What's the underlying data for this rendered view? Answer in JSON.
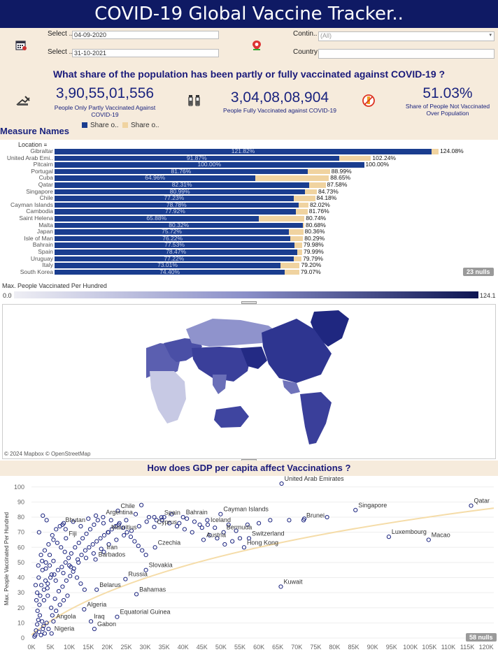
{
  "header": {
    "title": "COVID-19 Global Vaccine Tracker.."
  },
  "filters": {
    "start_label": "Select ..",
    "start_value": "04-09-2020",
    "end_label": "Select ..",
    "end_value": "31-10-2021",
    "continent_label": "Contin..",
    "continent_value": "(All)",
    "country_label": "Country",
    "country_value": ""
  },
  "kpis": {
    "question": "What share of the population has been partly or fully vaccinated against COVID-19 ?",
    "partly_value": "3,90,55,01,556",
    "partly_label_1": "People Only Partly Vaccinated Against",
    "partly_label_2": "COVID-19",
    "fully_value": "3,04,08,08,904",
    "fully_label": "People Fully Vaccinated against COVID-19",
    "not_value": "51.03%",
    "not_label_1": "Share of People Not Vaccinated",
    "not_label_2": "Over Population"
  },
  "bar_chart": {
    "measure_title": "Measure Names",
    "legend_1": "Share o..",
    "legend_2": "Share o..",
    "column_header": "Location",
    "nulls": "23 nulls",
    "colors": {
      "fully": "#1a3d8f",
      "partly": "#f0d3a0"
    },
    "max_scale": 127
  },
  "chart_data": [
    {
      "type": "bar",
      "categories": [
        "Gibraltar",
        "United Arab Emi..",
        "Pitcairn",
        "Portugal",
        "Cuba",
        "Qatar",
        "Singapore",
        "Chile",
        "Cayman Islands",
        "Cambodia",
        "Saint Helena",
        "Malta",
        "Japan",
        "Isle of Man",
        "Bahrain",
        "Spain",
        "Uruguay",
        "Italy",
        "South Korea"
      ],
      "series": [
        {
          "name": "Share o..",
          "values": [
            121.82,
            91.87,
            100.0,
            81.76,
            64.96,
            82.31,
            80.99,
            77.23,
            78.78,
            77.92,
            65.88,
            80.32,
            75.72,
            76.22,
            77.53,
            78.47,
            77.22,
            73.01,
            74.4
          ]
        },
        {
          "name": "Share o..",
          "values": [
            2.26,
            10.37,
            0,
            7.23,
            23.69,
            5.27,
            3.74,
            6.95,
            3.24,
            3.84,
            14.86,
            0.36,
            4.64,
            4.07,
            2.45,
            1.52,
            2.57,
            6.19,
            4.67
          ]
        }
      ],
      "value_labels": [
        "121.82%",
        "91.87%",
        "100.00%",
        "81.76%",
        "64.96%",
        "82.31%",
        "80.99%",
        "77.23%",
        "78.78%",
        "77.92%",
        "65.88%",
        "80.32%",
        "75.72%",
        "76.22%",
        "77.53%",
        "78.47%",
        "77.22%",
        "73.01%",
        "74.40%"
      ],
      "total_labels": [
        "124.08%",
        "102.24%",
        "100.00%",
        "88.99%",
        "88.65%",
        "87.58%",
        "84.73%",
        "84.18%",
        "82.02%",
        "81.76%",
        "80.74%",
        "80.68%",
        "80.36%",
        "80.29%",
        "79.98%",
        "79.99%",
        "79.79%",
        "79.20%",
        "79.07%"
      ]
    },
    {
      "type": "scatter",
      "title": "How does GDP per capita affect Vaccinations ?",
      "ylabel": "Max. People Vaccinated Per Hundred",
      "xlim": [
        0,
        122000
      ],
      "ylim": [
        0,
        105
      ],
      "x_ticks": [
        "0K",
        "5K",
        "10K",
        "15K",
        "20K",
        "25K",
        "30K",
        "35K",
        "40K",
        "45K",
        "50K",
        "55K",
        "60K",
        "65K",
        "70K",
        "75K",
        "80K",
        "85K",
        "90K",
        "95K",
        "100K",
        "105K",
        "110K",
        "115K",
        "120K"
      ],
      "y_ticks": [
        "0",
        "10",
        "20",
        "30",
        "40",
        "50",
        "60",
        "70",
        "80",
        "90",
        "100"
      ],
      "nulls": "58 nulls",
      "labeled_points": [
        {
          "label": "United Arab Emirates",
          "x": 66000,
          "y": 102.2
        },
        {
          "label": "Qatar",
          "x": 116000,
          "y": 87.6
        },
        {
          "label": "Singapore",
          "x": 85500,
          "y": 84.7
        },
        {
          "label": "Chile",
          "x": 22800,
          "y": 84.2
        },
        {
          "label": "Cayman Islands",
          "x": 49900,
          "y": 82.0
        },
        {
          "label": "Argentina",
          "x": 18900,
          "y": 80.0
        },
        {
          "label": "Bahrain",
          "x": 40000,
          "y": 80.0
        },
        {
          "label": "Spain",
          "x": 34300,
          "y": 79.9
        },
        {
          "label": "Brunei",
          "x": 71800,
          "y": 78.0
        },
        {
          "label": "Iceland",
          "x": 46500,
          "y": 75.0
        },
        {
          "label": "Bhutan",
          "x": 8200,
          "y": 75.0
        },
        {
          "label": "Cyprus",
          "x": 32400,
          "y": 73.5
        },
        {
          "label": "Bermuda",
          "x": 50700,
          "y": 70.0
        },
        {
          "label": "Mauritius",
          "x": 20300,
          "y": 70.0
        },
        {
          "label": "Switzerland",
          "x": 57400,
          "y": 66.0
        },
        {
          "label": "Luxembourg",
          "x": 94300,
          "y": 67.0
        },
        {
          "label": "Macao",
          "x": 104800,
          "y": 65.0
        },
        {
          "label": "Austria",
          "x": 45400,
          "y": 65.0
        },
        {
          "label": "Fiji",
          "x": 9100,
          "y": 66.0
        },
        {
          "label": "Hong Kong",
          "x": 56100,
          "y": 60.0
        },
        {
          "label": "Iran",
          "x": 19100,
          "y": 57.0
        },
        {
          "label": "Czechia",
          "x": 32600,
          "y": 60.0
        },
        {
          "label": "Barbados",
          "x": 16900,
          "y": 52.0
        },
        {
          "label": "Slovakia",
          "x": 30200,
          "y": 45.0
        },
        {
          "label": "Russia",
          "x": 24800,
          "y": 39.0
        },
        {
          "label": "Kuwait",
          "x": 65800,
          "y": 34.0
        },
        {
          "label": "Belarus",
          "x": 17200,
          "y": 32.0
        },
        {
          "label": "Bahamas",
          "x": 27700,
          "y": 29.0
        },
        {
          "label": "Algeria",
          "x": 13900,
          "y": 19.0
        },
        {
          "label": "Equatorial Guinea",
          "x": 22600,
          "y": 14.0
        },
        {
          "label": "Iraq",
          "x": 15700,
          "y": 11.0
        },
        {
          "label": "Angola",
          "x": 5800,
          "y": 11.0
        },
        {
          "label": "Gabon",
          "x": 16600,
          "y": 6.0
        },
        {
          "label": "Nigeria",
          "x": 5300,
          "y": 3.0
        }
      ],
      "points": [
        [
          2000,
          4
        ],
        [
          2500,
          2
        ],
        [
          3000,
          6
        ],
        [
          3500,
          3
        ],
        [
          1500,
          9
        ],
        [
          1800,
          12
        ],
        [
          2200,
          15
        ],
        [
          1000,
          2
        ],
        [
          1200,
          5
        ],
        [
          800,
          1
        ],
        [
          3200,
          8
        ],
        [
          4000,
          10
        ],
        [
          4500,
          6
        ],
        [
          2800,
          11
        ],
        [
          1600,
          18
        ],
        [
          2100,
          22
        ],
        [
          3300,
          25
        ],
        [
          4300,
          28
        ],
        [
          1500,
          30
        ],
        [
          2600,
          35
        ],
        [
          3700,
          38
        ],
        [
          5000,
          40
        ],
        [
          6000,
          42
        ],
        [
          7000,
          45
        ],
        [
          8000,
          47
        ],
        [
          9000,
          50
        ],
        [
          10000,
          48
        ],
        [
          11000,
          44
        ],
        [
          12000,
          40
        ],
        [
          13000,
          36
        ],
        [
          14000,
          32
        ],
        [
          9500,
          28
        ],
        [
          8500,
          25
        ],
        [
          7500,
          22
        ],
        [
          6500,
          18
        ],
        [
          5500,
          15
        ],
        [
          5200,
          20
        ],
        [
          6200,
          26
        ],
        [
          7200,
          31
        ],
        [
          8200,
          34
        ],
        [
          9200,
          38
        ],
        [
          10200,
          41
        ],
        [
          11200,
          46
        ],
        [
          12200,
          52
        ],
        [
          13200,
          55
        ],
        [
          14200,
          58
        ],
        [
          15200,
          60
        ],
        [
          16200,
          62
        ],
        [
          17200,
          64
        ],
        [
          18200,
          66
        ],
        [
          19200,
          68
        ],
        [
          20200,
          70
        ],
        [
          21200,
          72
        ],
        [
          22200,
          74
        ],
        [
          23200,
          76
        ],
        [
          24200,
          73
        ],
        [
          25200,
          70
        ],
        [
          26200,
          67
        ],
        [
          27200,
          64
        ],
        [
          28200,
          61
        ],
        [
          29200,
          58
        ],
        [
          30200,
          55
        ],
        [
          11500,
          60
        ],
        [
          12500,
          63
        ],
        [
          13500,
          66
        ],
        [
          14500,
          69
        ],
        [
          15500,
          72
        ],
        [
          16500,
          75
        ],
        [
          17500,
          78
        ],
        [
          10500,
          56
        ],
        [
          9800,
          53
        ],
        [
          8800,
          57
        ],
        [
          7800,
          60
        ],
        [
          6800,
          63
        ],
        [
          5800,
          65
        ],
        [
          4800,
          55
        ],
        [
          3800,
          50
        ],
        [
          2900,
          45
        ],
        [
          1900,
          40
        ],
        [
          1100,
          35
        ],
        [
          4200,
          33
        ],
        [
          6400,
          38
        ],
        [
          8400,
          43
        ],
        [
          10400,
          47
        ],
        [
          12400,
          50
        ],
        [
          14400,
          53
        ],
        [
          16400,
          56
        ],
        [
          18400,
          59
        ],
        [
          20400,
          62
        ],
        [
          22400,
          65
        ],
        [
          24400,
          68
        ],
        [
          26400,
          71
        ],
        [
          28400,
          74
        ],
        [
          30400,
          77
        ],
        [
          32400,
          80
        ],
        [
          34400,
          78
        ],
        [
          36400,
          76
        ],
        [
          38400,
          74
        ],
        [
          40400,
          72
        ],
        [
          42400,
          70
        ],
        [
          44400,
          75
        ],
        [
          46400,
          78
        ],
        [
          48400,
          73
        ],
        [
          52000,
          75
        ],
        [
          54000,
          71
        ],
        [
          57000,
          75
        ],
        [
          60000,
          76
        ],
        [
          63000,
          78
        ],
        [
          68000,
          78
        ],
        [
          72000,
          79
        ],
        [
          78000,
          80
        ],
        [
          25000,
          78
        ],
        [
          27500,
          82
        ],
        [
          29000,
          88
        ],
        [
          31000,
          80
        ],
        [
          33000,
          78
        ],
        [
          35000,
          80
        ],
        [
          37000,
          82
        ],
        [
          39000,
          76
        ],
        [
          41000,
          79
        ],
        [
          43000,
          77
        ],
        [
          45000,
          73
        ],
        [
          47000,
          68
        ],
        [
          49000,
          66
        ],
        [
          51000,
          62
        ],
        [
          53000,
          64
        ],
        [
          55000,
          66
        ],
        [
          2500,
          55
        ],
        [
          3500,
          58
        ],
        [
          4500,
          62
        ],
        [
          5500,
          68
        ],
        [
          6500,
          72
        ],
        [
          7500,
          74
        ],
        [
          8500,
          76
        ],
        [
          2000,
          70
        ],
        [
          3000,
          81
        ],
        [
          4000,
          78
        ],
        [
          9000,
          72
        ],
        [
          11000,
          77
        ],
        [
          13000,
          74
        ],
        [
          15000,
          79
        ],
        [
          17000,
          81
        ],
        [
          19000,
          76
        ],
        [
          21000,
          78
        ],
        [
          23000,
          75
        ],
        [
          1300,
          25
        ],
        [
          2300,
          28
        ],
        [
          3300,
          32
        ],
        [
          4300,
          36
        ],
        [
          5300,
          42
        ],
        [
          1800,
          48
        ],
        [
          2800,
          51
        ],
        [
          3800,
          46
        ],
        [
          4800,
          48
        ],
        [
          5800,
          51
        ]
      ]
    }
  ]
}
